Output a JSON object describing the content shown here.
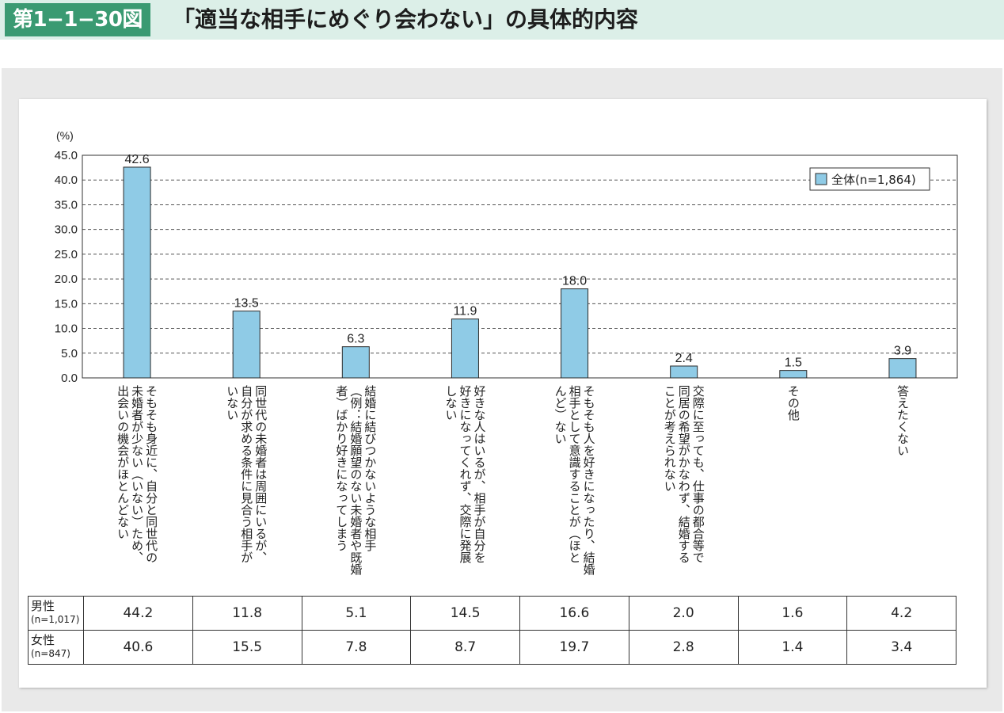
{
  "header": {
    "figure_number": "第1−1−30図",
    "title": "「適当な相手にめぐり会わない」の具体的内容"
  },
  "chart_data": {
    "type": "bar",
    "title": "「適当な相手にめぐり会わない」の具体的内容",
    "ylabel": "(%)",
    "ylim": [
      0,
      45
    ],
    "yticks": [
      "45.0",
      "40.0",
      "35.0",
      "30.0",
      "25.0",
      "20.0",
      "15.0",
      "10.0",
      "5.0",
      "0.0"
    ],
    "grid": true,
    "legend_position": "top-right",
    "categories": [
      "そもそも身近に、自分と同世代の未婚者が少ない(いない)ため、出会いの機会がほとんどない",
      "同世代の未婚者は周囲にいるが、自分が求める条件に見合う相手がいない",
      "結婚に結びつかないような相手(例:結婚願望のない未婚者や既婚者)ばかり好きになってしまう",
      "好きな人はいるが、相手が自分を好きになってくれず、交際に発展しない",
      "そもそも人を好きになったり、結婚相手として意識することが(ほとんど)ない",
      "交際に至っても、仕事の都合等で同居の希望がかなわず、結婚することが考えられない",
      "その他",
      "答えたくない"
    ],
    "category_lines": [
      [
        "そもそも身近に、自分と同世代の",
        "未婚者が少ない（いない）ため、",
        "出会いの機会がほとんどない"
      ],
      [
        "同世代の未婚者は周囲にいるが、",
        "自分が求める条件に見合う相手が",
        "いない"
      ],
      [
        "結婚に結びつかないような相手",
        "（例：結婚願望のない未婚者や既婚",
        "者）ばかり好きになってしまう"
      ],
      [
        "好きな人はいるが、相手が自分を",
        "好きになってくれず、交際に発展",
        "しない"
      ],
      [
        "そもそも人を好きになったり、結婚",
        "相手として意識することが（ほと",
        "んど）ない"
      ],
      [
        "交際に至っても、仕事の都合等で",
        "同居の希望がかなわず、結婚する",
        "ことが考えられない"
      ],
      [
        "その他"
      ],
      [
        "答えたくない"
      ]
    ],
    "series": [
      {
        "name": "全体(n=1,864)",
        "values": [
          42.6,
          13.5,
          6.3,
          11.9,
          18.0,
          2.4,
          1.5,
          3.9
        ],
        "labels": [
          "42.6",
          "13.5",
          "6.3",
          "11.9",
          "18.0",
          "2.4",
          "1.5",
          "3.9"
        ]
      }
    ],
    "table": {
      "rows": [
        {
          "label": "男性",
          "sub": "(n=1,017)",
          "values": [
            "44.2",
            "11.8",
            "5.1",
            "14.5",
            "16.6",
            "2.0",
            "1.6",
            "4.2"
          ]
        },
        {
          "label": "女性",
          "sub": "(n=847)",
          "values": [
            "40.6",
            "15.5",
            "7.8",
            "8.7",
            "19.7",
            "2.8",
            "1.4",
            "3.4"
          ]
        }
      ]
    },
    "colors": {
      "bar": "#8fcbe6",
      "bar_border": "#2b2b2b",
      "grid": "#555555"
    }
  }
}
